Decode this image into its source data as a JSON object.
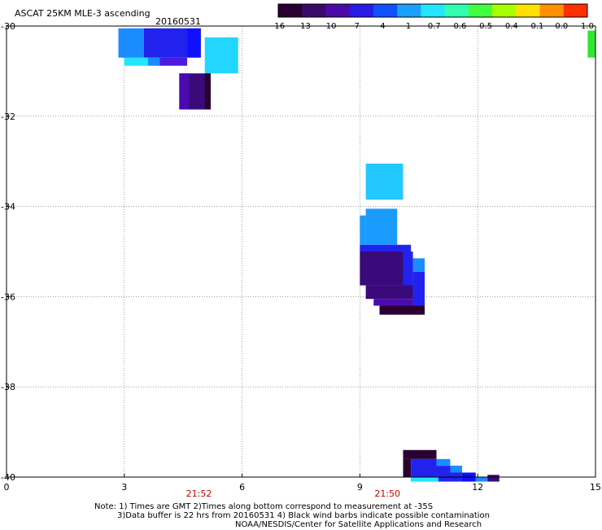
{
  "header": {
    "title": "ASCAT 25KM MLE-3 ascending",
    "date": "20160531"
  },
  "colorbar": {
    "labels": [
      "-16",
      "-13",
      "-10",
      "-7",
      "-4",
      "-1",
      "-0.7",
      "-0.6",
      "-0.5",
      "-0.4",
      "-0.1",
      "0.0",
      "1.0"
    ],
    "colors": [
      "#2a0030",
      "#3a0a6a",
      "#4b0aa8",
      "#2a1ae8",
      "#1050ff",
      "#1aa0ff",
      "#22e6ff",
      "#30ffb0",
      "#40ff40",
      "#a8ff00",
      "#ffe000",
      "#ff9000",
      "#ff3000"
    ]
  },
  "axes": {
    "x_ticks": [
      "0",
      "3",
      "6",
      "9",
      "12",
      "15"
    ],
    "y_ticks": [
      "-30",
      "-32",
      "-34",
      "-36",
      "-38",
      "-40"
    ],
    "x_range": [
      0,
      15
    ],
    "y_range": [
      -30,
      -40
    ],
    "grid": "dotted"
  },
  "times": [
    {
      "label": "21:52",
      "lon": 4.9
    },
    {
      "label": "21:50",
      "lon": 9.7
    }
  ],
  "note": {
    "line1": "Note: 1) Times are GMT 2)Times along bottom correspond to measurement at -35S",
    "line2": "3)Data buffer is 22 hrs from 20160531 4) Black wind barbs indicate possible contamination",
    "line3": "NOAA/NESDIS/Center for Satellite Applications and Research"
  },
  "chart_data": {
    "type": "heatmap",
    "title": "ASCAT 25KM MLE-3 ascending",
    "subtitle": "20160531",
    "xlim": [
      0,
      15
    ],
    "ylim": [
      -40,
      -30
    ],
    "value_scale": [
      "-16",
      "-13",
      "-10",
      "-7",
      "-4",
      "-1",
      "-0.7",
      "-0.6",
      "-0.5",
      "-0.4",
      "-0.1",
      "0.0",
      "1.0"
    ],
    "cells": [
      {
        "lon": [
          2.85,
          3.5
        ],
        "lat": [
          -30.05,
          -30.7
        ],
        "color": "#1a8cff"
      },
      {
        "lon": [
          3.5,
          4.6
        ],
        "lat": [
          -30.05,
          -30.7
        ],
        "color": "#2222ee"
      },
      {
        "lon": [
          4.6,
          4.95
        ],
        "lat": [
          -30.05,
          -30.7
        ],
        "color": "#1010ff"
      },
      {
        "lon": [
          2.95,
          3.5
        ],
        "lat": [
          -30.5,
          -30.7
        ],
        "color": "#1a8cff"
      },
      {
        "lon": [
          3.0,
          3.6
        ],
        "lat": [
          -30.7,
          -30.88
        ],
        "color": "#22e6ff"
      },
      {
        "lon": [
          3.6,
          3.9
        ],
        "lat": [
          -30.7,
          -30.88
        ],
        "color": "#1a8cff"
      },
      {
        "lon": [
          3.9,
          4.6
        ],
        "lat": [
          -30.7,
          -30.88
        ],
        "color": "#4b1ae0"
      },
      {
        "lon": [
          5.05,
          5.9
        ],
        "lat": [
          -30.25,
          -31.05
        ],
        "color": "#22d6ff"
      },
      {
        "lon": [
          4.4,
          5.2
        ],
        "lat": [
          -31.05,
          -31.85
        ],
        "color": "#3a0a7a"
      },
      {
        "lon": [
          4.4,
          4.65
        ],
        "lat": [
          -31.05,
          -31.85
        ],
        "color": "#4b0ab0"
      },
      {
        "lon": [
          5.05,
          5.2
        ],
        "lat": [
          -31.05,
          -31.85
        ],
        "color": "#2a0030"
      },
      {
        "lon": [
          14.8,
          15.0
        ],
        "lat": [
          -30.1,
          -30.7
        ],
        "color": "#30e830"
      },
      {
        "lon": [
          9.15,
          10.1
        ],
        "lat": [
          -33.05,
          -33.85
        ],
        "color": "#22c8ff"
      },
      {
        "lon": [
          9.0,
          9.15
        ],
        "lat": [
          -34.2,
          -34.85
        ],
        "color": "#1a9cff"
      },
      {
        "lon": [
          9.15,
          9.95
        ],
        "lat": [
          -34.05,
          -34.85
        ],
        "color": "#1a9cff"
      },
      {
        "lon": [
          9.0,
          10.3
        ],
        "lat": [
          -34.85,
          -35.0
        ],
        "color": "#2222ee"
      },
      {
        "lon": [
          9.0,
          10.1
        ],
        "lat": [
          -35.0,
          -35.75
        ],
        "color": "#3a0a7a"
      },
      {
        "lon": [
          10.1,
          10.35
        ],
        "lat": [
          -35.0,
          -35.9
        ],
        "color": "#2222ee"
      },
      {
        "lon": [
          10.35,
          10.65
        ],
        "lat": [
          -35.15,
          -35.45
        ],
        "color": "#1a8cff"
      },
      {
        "lon": [
          10.35,
          10.65
        ],
        "lat": [
          -35.45,
          -36.2
        ],
        "color": "#2222ee"
      },
      {
        "lon": [
          9.15,
          10.35
        ],
        "lat": [
          -35.75,
          -36.05
        ],
        "color": "#3a0a7a"
      },
      {
        "lon": [
          9.35,
          10.35
        ],
        "lat": [
          -36.05,
          -36.2
        ],
        "color": "#4b0ab0"
      },
      {
        "lon": [
          9.5,
          10.65
        ],
        "lat": [
          -36.2,
          -36.4
        ],
        "color": "#2a0030"
      },
      {
        "lon": [
          10.1,
          10.95
        ],
        "lat": [
          -39.4,
          -39.6
        ],
        "color": "#2a0030"
      },
      {
        "lon": [
          10.1,
          10.3
        ],
        "lat": [
          -39.6,
          -40.0
        ],
        "color": "#2a0030"
      },
      {
        "lon": [
          10.3,
          10.95
        ],
        "lat": [
          -39.6,
          -40.1
        ],
        "color": "#2222ee"
      },
      {
        "lon": [
          10.95,
          11.3
        ],
        "lat": [
          -39.6,
          -39.75
        ],
        "color": "#1a8cff"
      },
      {
        "lon": [
          10.95,
          11.6
        ],
        "lat": [
          -39.75,
          -40.1
        ],
        "color": "#2222ee"
      },
      {
        "lon": [
          11.3,
          11.6
        ],
        "lat": [
          -39.75,
          -39.9
        ],
        "color": "#1a8cff"
      },
      {
        "lon": [
          11.6,
          11.95
        ],
        "lat": [
          -39.9,
          -40.1
        ],
        "color": "#1010ff"
      },
      {
        "lon": [
          11.95,
          12.25
        ],
        "lat": [
          -40.0,
          -40.1
        ],
        "color": "#1a8cff"
      },
      {
        "lon": [
          12.25,
          12.55
        ],
        "lat": [
          -39.95,
          -40.1
        ],
        "color": "#3a0a7a"
      },
      {
        "lon": [
          10.3,
          11.0
        ],
        "lat": [
          -40.0,
          -40.1
        ],
        "color": "#22e6ff"
      }
    ]
  }
}
